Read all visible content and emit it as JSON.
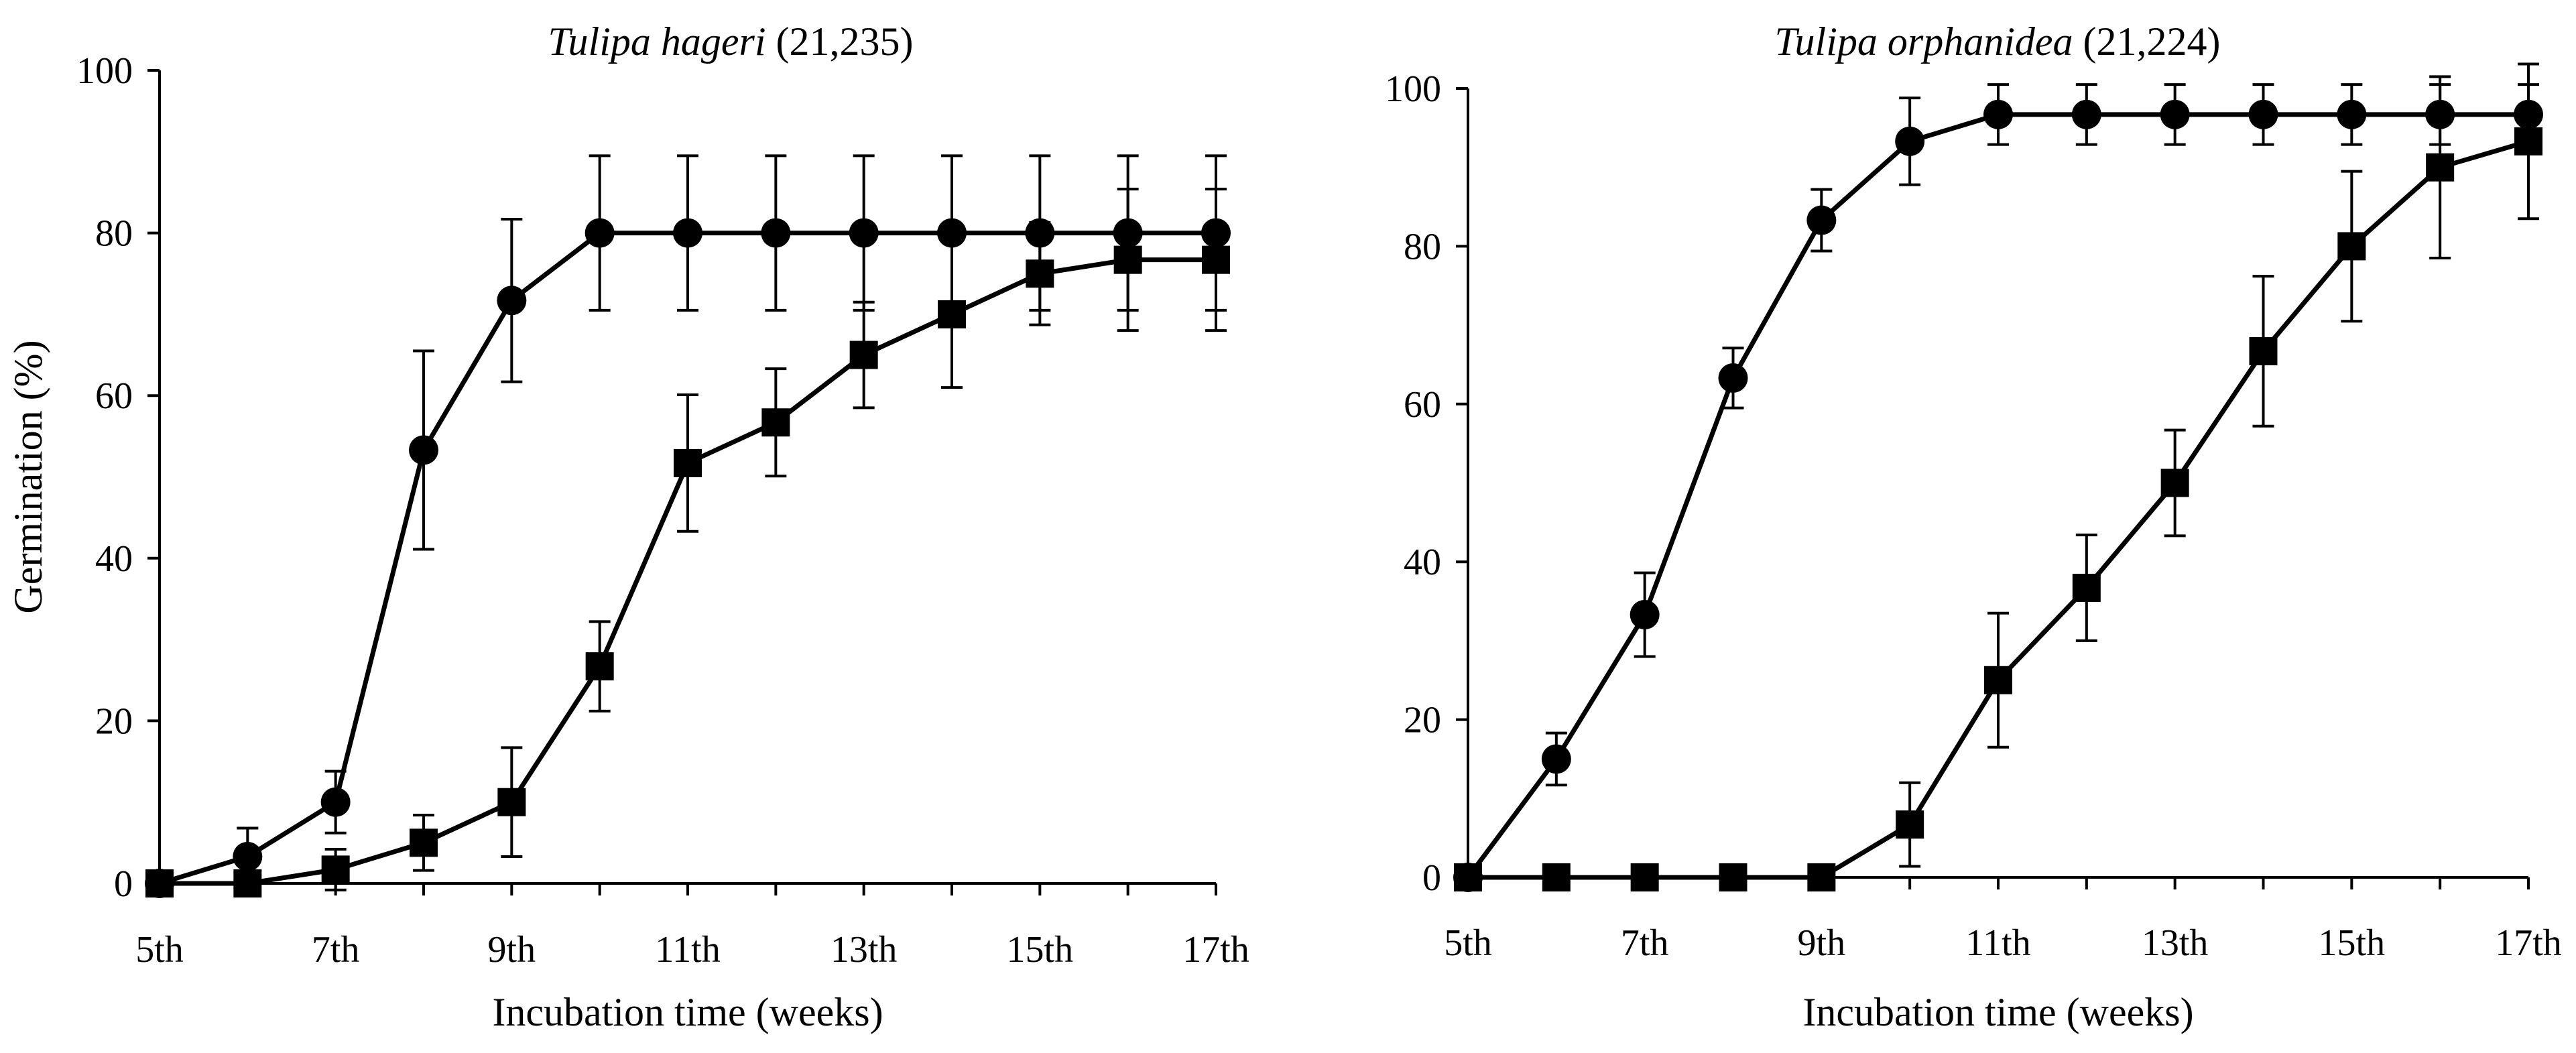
{
  "chart_data": [
    {
      "type": "line",
      "title": "Tulipa hageri (21,235)",
      "title_species": "Tulipa hageri",
      "title_code": "(21,235)",
      "xlabel": "Incubation time (weeks)",
      "ylabel": "Germination (%)",
      "categories": [
        "5th",
        "6th",
        "7th",
        "8th",
        "9th",
        "10th",
        "11th",
        "12th",
        "13th",
        "14th",
        "15th",
        "16th",
        "17th"
      ],
      "x_tick_labels": [
        "5th",
        "7th",
        "9th",
        "11th",
        "13th",
        "15th",
        "17th"
      ],
      "y_ticks": [
        "0",
        "20",
        "40",
        "60",
        "80",
        "100"
      ],
      "ylim": [
        0,
        100
      ],
      "grid": false,
      "legend": "none",
      "series": [
        {
          "name": "circles",
          "marker": "circle",
          "values": [
            0,
            3.3,
            10,
            53.3,
            71.7,
            80,
            80,
            80,
            80,
            80,
            80,
            80,
            80
          ],
          "errors": [
            0,
            3.5,
            3.8,
            12.2,
            10,
            9.5,
            9.5,
            9.5,
            9.5,
            9.5,
            9.5,
            9.5,
            9.5
          ]
        },
        {
          "name": "squares",
          "marker": "square",
          "values": [
            0,
            0,
            1.7,
            5,
            10,
            26.7,
            51.7,
            56.7,
            65,
            70,
            75,
            76.7,
            76.7
          ],
          "errors": [
            0,
            0,
            2.5,
            3.4,
            6.7,
            5.5,
            8.4,
            6.6,
            6.5,
            9,
            6.3,
            8.7,
            8.7
          ]
        }
      ]
    },
    {
      "type": "line",
      "title": "Tulipa orphanidea (21,224)",
      "title_species": "Tulipa orphanidea",
      "title_code": "(21,224)",
      "xlabel": "Incubation time (weeks)",
      "ylabel": "",
      "categories": [
        "5th",
        "6th",
        "7th",
        "8th",
        "9th",
        "10th",
        "11th",
        "12th",
        "13th",
        "14th",
        "15th",
        "16th",
        "17th"
      ],
      "x_tick_labels": [
        "5th",
        "7th",
        "9th",
        "11th",
        "13th",
        "15th",
        "17th"
      ],
      "y_ticks": [
        "0",
        "20",
        "40",
        "60",
        "80",
        "100"
      ],
      "ylim": [
        0,
        100
      ],
      "grid": false,
      "legend": "none",
      "series": [
        {
          "name": "circles",
          "marker": "circle",
          "values": [
            0,
            15,
            33.3,
            63.3,
            83.3,
            93.3,
            96.7,
            96.7,
            96.7,
            96.7,
            96.7,
            96.7,
            96.7
          ],
          "errors": [
            0,
            3.3,
            5.3,
            3.8,
            3.9,
            5.5,
            3.8,
            3.8,
            3.8,
            3.8,
            3.8,
            3.8,
            3.8
          ]
        },
        {
          "name": "squares",
          "marker": "square",
          "values": [
            0,
            0,
            0,
            0,
            0,
            6.7,
            25,
            36.7,
            50,
            66.7,
            80,
            90,
            93.3
          ],
          "errors": [
            0,
            0,
            0,
            0,
            0,
            5.3,
            8.5,
            6.7,
            6.7,
            9.5,
            9.5,
            11.5,
            9.8
          ]
        }
      ]
    }
  ]
}
